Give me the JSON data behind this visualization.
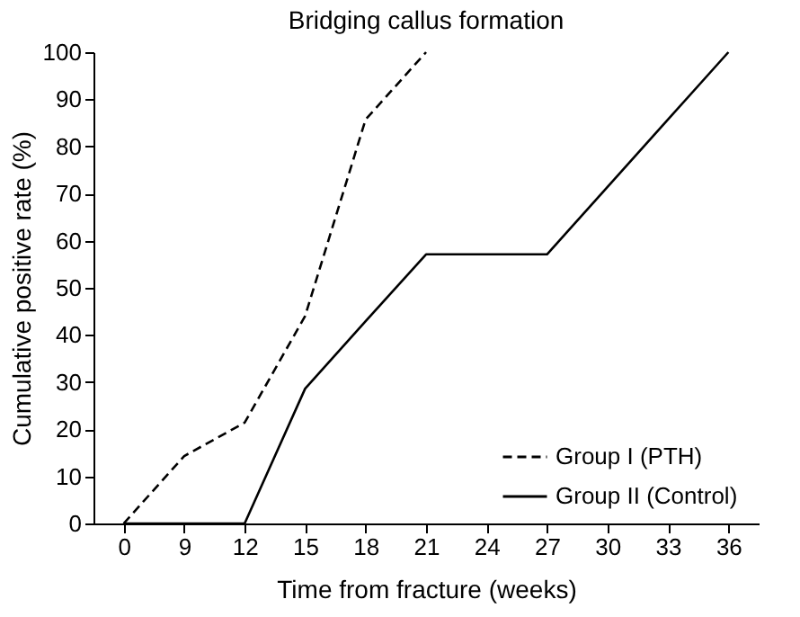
{
  "chart_data": {
    "type": "line",
    "title": "Bridging callus formation",
    "xlabel": "Time from fracture (weeks)",
    "ylabel": "Cumulative positive rate (%)",
    "categories": [
      "0",
      "9",
      "12",
      "15",
      "18",
      "21",
      "24",
      "27",
      "30",
      "33",
      "36"
    ],
    "series": [
      {
        "name": "Group  I (PTH)",
        "color": "#000000",
        "line_style": "dashed",
        "values": [
          0,
          14.3,
          21.4,
          44,
          85.7,
          100,
          null,
          null,
          null,
          null,
          null
        ]
      },
      {
        "name": "Group  II (Control)",
        "color": "#000000",
        "line_style": "solid",
        "values": [
          0,
          0,
          0,
          28.6,
          42.9,
          57.1,
          57.1,
          57.1,
          71.4,
          85.7,
          100
        ]
      }
    ],
    "ylim": [
      0,
      100
    ],
    "yticks": [
      0,
      10,
      20,
      30,
      40,
      50,
      60,
      70,
      80,
      90,
      100
    ],
    "grid": false,
    "legend": "bottom right",
    "marker": "none"
  }
}
